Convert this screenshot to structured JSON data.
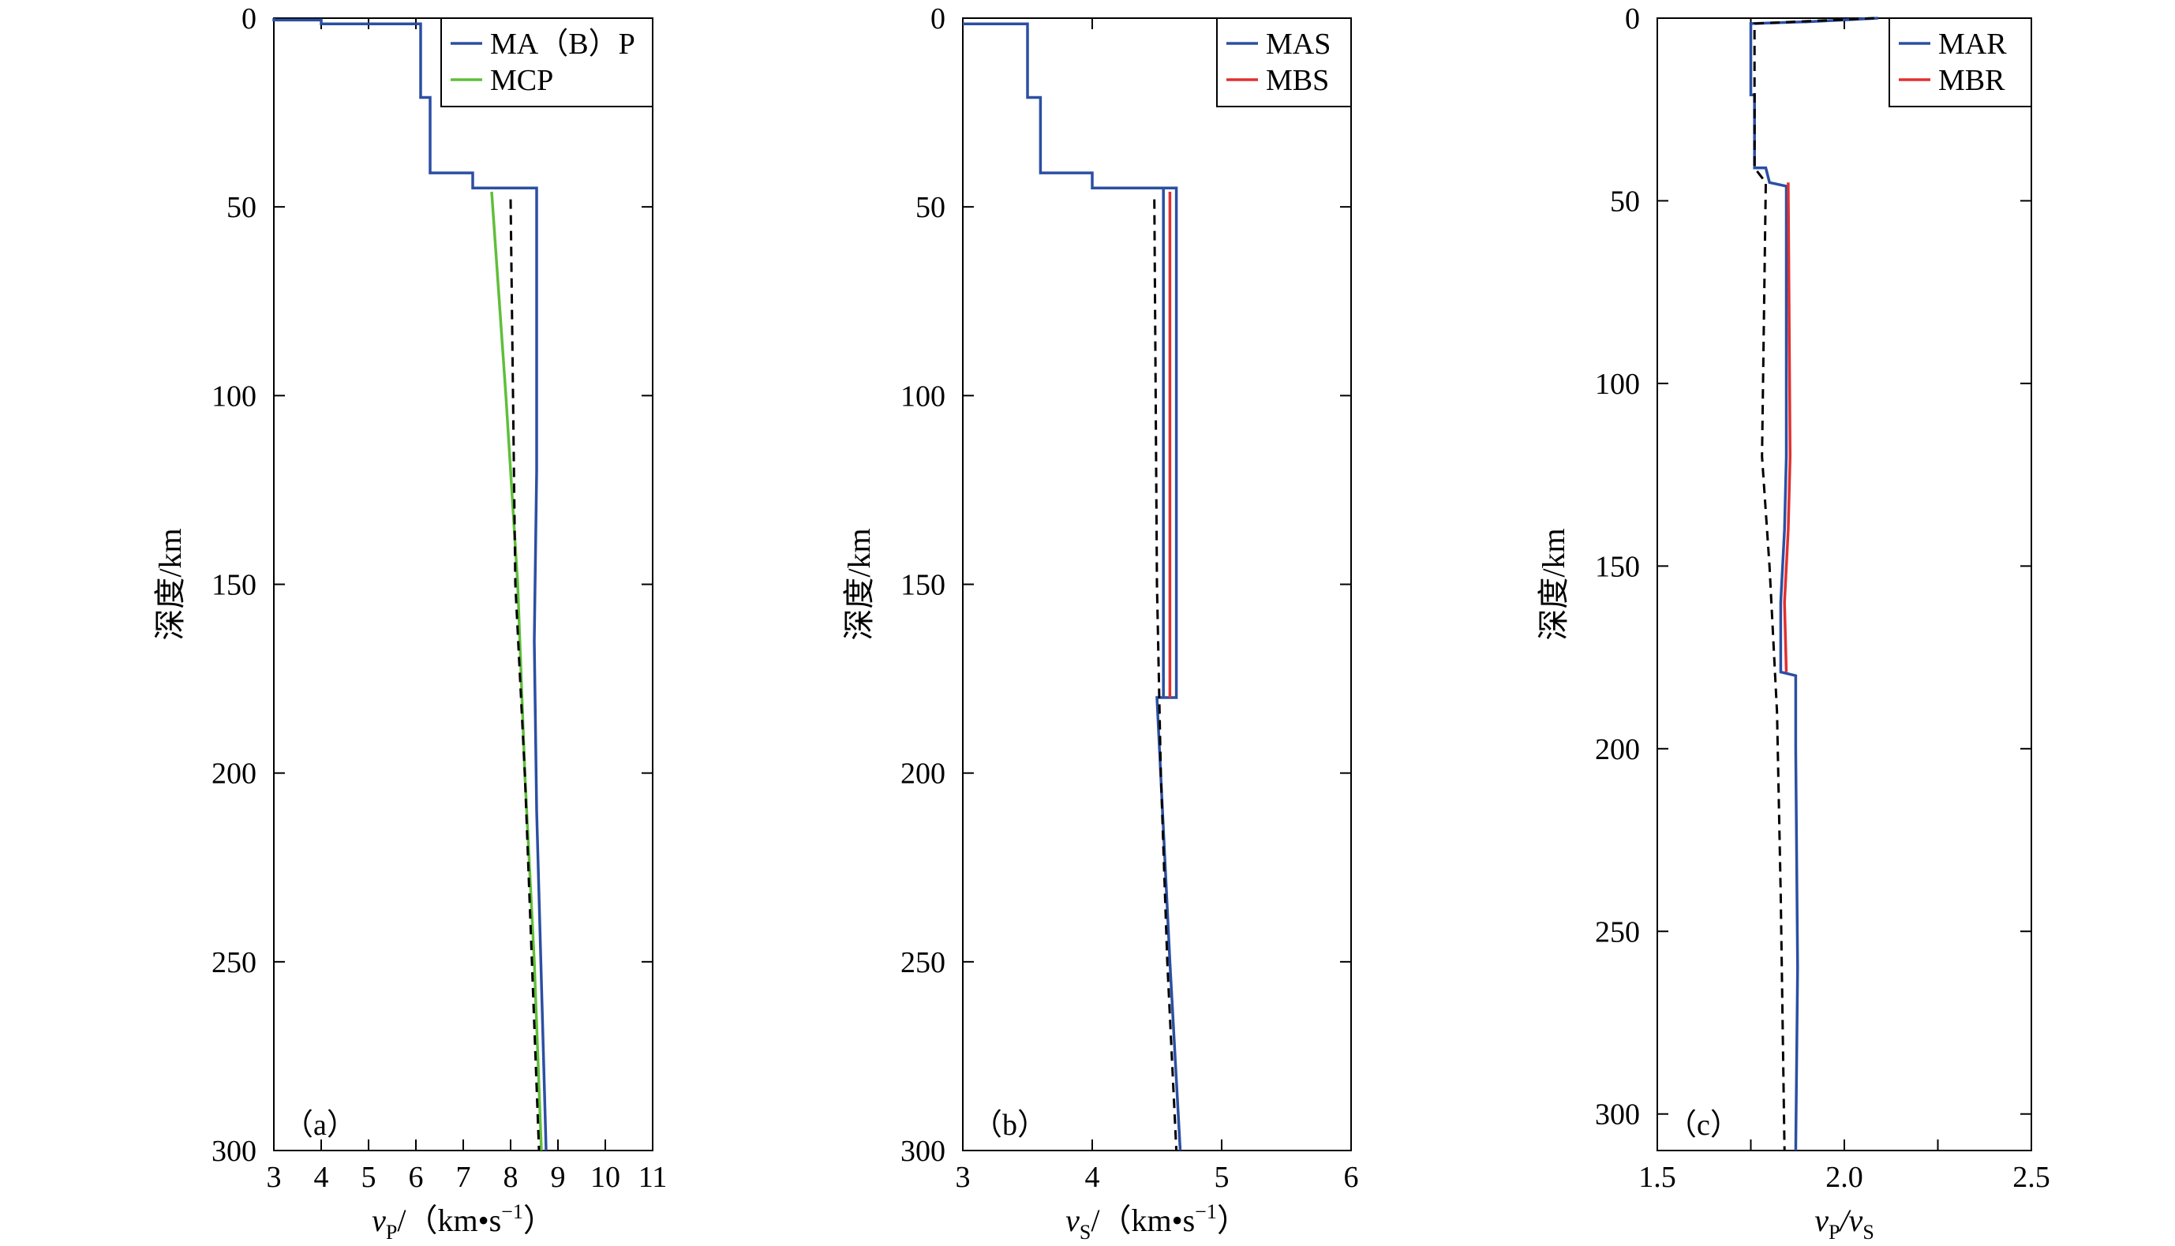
{
  "chart_data": [
    {
      "type": "line",
      "panel_label": "（a）",
      "xlabel_main": "v",
      "xlabel_sub": "P",
      "xlabel_unit": "/（km•s",
      "xlabel_exp": "−1",
      "xlabel_close": "）",
      "ylabel": "深度/km",
      "xlim": [
        3,
        11
      ],
      "ylim": [
        0,
        300
      ],
      "y_inverted": true,
      "xticks": [
        "3",
        "4",
        "5",
        "6",
        "7",
        "8",
        "9",
        "10",
        "11"
      ],
      "yticks": [
        "0",
        "50",
        "100",
        "150",
        "200",
        "250",
        "300"
      ],
      "legend_position": "top-right",
      "series": [
        {
          "name": "MA（B）P",
          "color": "#2b4fa3",
          "style": "solid",
          "points": [
            [
              3.0,
              0
            ],
            [
              3.0,
              0.5
            ],
            [
              4.0,
              0.5
            ],
            [
              4.0,
              1.5
            ],
            [
              6.1,
              1.5
            ],
            [
              6.1,
              21
            ],
            [
              6.3,
              21
            ],
            [
              6.3,
              41
            ],
            [
              7.2,
              41
            ],
            [
              7.2,
              45
            ],
            [
              8.55,
              45
            ],
            [
              8.55,
              120
            ],
            [
              8.5,
              165
            ],
            [
              8.55,
              210
            ],
            [
              8.75,
              300
            ]
          ]
        },
        {
          "name": "MCP",
          "color": "#5fbf3a",
          "style": "solid",
          "points": [
            [
              7.6,
              46
            ],
            [
              7.9,
              100
            ],
            [
              8.15,
              150
            ],
            [
              8.3,
              200
            ],
            [
              8.5,
              250
            ],
            [
              8.65,
              300
            ]
          ]
        },
        {
          "name": "",
          "color": "#000000",
          "style": "dashed",
          "points": [
            [
              8.0,
              48
            ],
            [
              8.1,
              150
            ],
            [
              8.3,
              200
            ],
            [
              8.45,
              250
            ],
            [
              8.6,
              300
            ]
          ]
        }
      ]
    },
    {
      "type": "line",
      "panel_label": "（b）",
      "xlabel_main": "v",
      "xlabel_sub": "S",
      "xlabel_unit": "/（km•s",
      "xlabel_exp": "−1",
      "xlabel_close": "）",
      "ylabel": "深度/km",
      "xlim": [
        3,
        6
      ],
      "ylim": [
        0,
        300
      ],
      "y_inverted": true,
      "xticks": [
        "3",
        "4",
        "5",
        "6"
      ],
      "yticks": [
        "0",
        "50",
        "100",
        "150",
        "200",
        "250",
        "300"
      ],
      "legend_position": "top-right",
      "series": [
        {
          "name": "MAS",
          "color": "#2b4fa3",
          "style": "solid",
          "points": [
            [
              3.0,
              1.5
            ],
            [
              3.5,
              1.5
            ],
            [
              3.5,
              21
            ],
            [
              3.6,
              21
            ],
            [
              3.6,
              41
            ],
            [
              4.0,
              41
            ],
            [
              4.0,
              45
            ],
            [
              4.55,
              45
            ],
            [
              4.55,
              180
            ],
            [
              4.65,
              180
            ],
            [
              4.65,
              45
            ],
            [
              4.55,
              45
            ],
            [
              4.55,
              180
            ],
            [
              4.5,
              180
            ],
            [
              4.6,
              250
            ],
            [
              4.68,
              300
            ]
          ]
        },
        {
          "name": "MBS",
          "color": "#e03030",
          "style": "solid",
          "points": [
            [
              4.6,
              46
            ],
            [
              4.6,
              180
            ]
          ]
        },
        {
          "name": "",
          "color": "#000000",
          "style": "dashed",
          "points": [
            [
              4.48,
              48
            ],
            [
              4.5,
              150
            ],
            [
              4.53,
              200
            ],
            [
              4.58,
              250
            ],
            [
              4.65,
              300
            ]
          ]
        }
      ]
    },
    {
      "type": "line",
      "panel_label": "（c）",
      "xlabel_main": "v",
      "xlabel_sub": "P",
      "xlabel_mid": "/v",
      "xlabel_sub2": "S",
      "ylabel": "深度/km",
      "xlim": [
        1.5,
        2.5
      ],
      "ylim": [
        0,
        310
      ],
      "y_inverted": true,
      "xticks": [
        "1.5",
        "2.0",
        "2.5"
      ],
      "xtick_values": [
        1.5,
        2.0,
        2.5
      ],
      "xminor_values": [
        1.75,
        2.25
      ],
      "yticks": [
        "0",
        "50",
        "100",
        "150",
        "200",
        "250",
        "300"
      ],
      "legend_position": "top-right",
      "series": [
        {
          "name": "MAR",
          "color": "#2b4fa3",
          "style": "solid",
          "points": [
            [
              2.09,
              0
            ],
            [
              2.0,
              0.5
            ],
            [
              1.9,
              1
            ],
            [
              1.75,
              1.5
            ],
            [
              1.75,
              21
            ],
            [
              1.76,
              21
            ],
            [
              1.76,
              41
            ],
            [
              1.79,
              41
            ],
            [
              1.8,
              45
            ],
            [
              1.845,
              46
            ],
            [
              1.845,
              120
            ],
            [
              1.84,
              140
            ],
            [
              1.83,
              160
            ],
            [
              1.83,
              179
            ],
            [
              1.87,
              180
            ],
            [
              1.87,
              200
            ],
            [
              1.875,
              260
            ],
            [
              1.87,
              310
            ]
          ]
        },
        {
          "name": "MBR",
          "color": "#e03030",
          "style": "solid",
          "points": [
            [
              1.85,
              45
            ],
            [
              1.855,
              120
            ],
            [
              1.85,
              140
            ],
            [
              1.84,
              160
            ],
            [
              1.845,
              179
            ]
          ]
        },
        {
          "name": "",
          "color": "#000000",
          "style": "dashed",
          "points": [
            [
              2.08,
              0
            ],
            [
              1.76,
              1.5
            ],
            [
              1.76,
              41
            ],
            [
              1.79,
              45
            ],
            [
              1.78,
              120
            ],
            [
              1.8,
              150
            ],
            [
              1.82,
              190
            ],
            [
              1.83,
              240
            ],
            [
              1.84,
              310
            ]
          ]
        }
      ]
    }
  ]
}
